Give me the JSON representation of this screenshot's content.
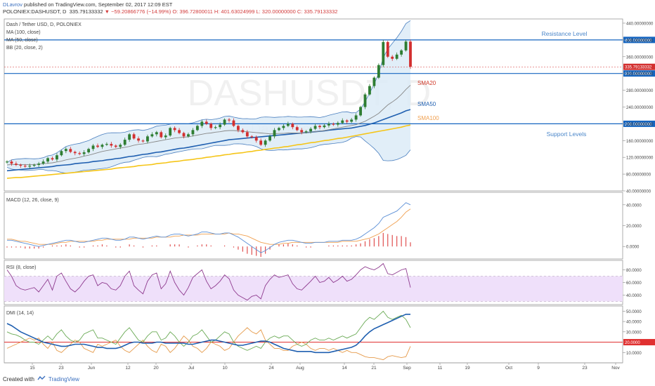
{
  "header": {
    "author": "DLavrov",
    "published": "published on TradingView.com, September 02, 2017 12:09 EST",
    "symbol": "POLONIEX:DASHUSDT, D",
    "last": "335.79133332",
    "change": "▼ −59.20866776 (−14.99%)",
    "ohlc": "O: 396.72800011 H: 401.63024999 L: 320.00000000 C: 335.79133332"
  },
  "footer": {
    "created_with": "Created with",
    "brand": "TradingView"
  },
  "colors": {
    "up": "#2e7d32",
    "down": "#d32f2f",
    "sma20": "#888888",
    "sma50": "#1f5fb0",
    "sma100": "#f5c518",
    "bb": "#4a7fbf",
    "bb_fill": "#dcebf7",
    "level": "#1565c0",
    "macd": "#5b8fd6",
    "signal": "#f0a050",
    "hist": "#e05050",
    "rsi": "#8e3a8e",
    "rsi_band": "#efe0fa",
    "dmi_adx": "#1f5fb0",
    "dmi_plus": "#6aaa55",
    "dmi_minus": "#e59a4a",
    "dmi_line": "#e03030"
  },
  "chart_data": [
    {
      "type": "candlestick",
      "title": "Dash / Tether USD, D, POLONIEX",
      "indicators": [
        "MA (100, close)",
        "MA (50, close)",
        "BB (20, close, 2)"
      ],
      "watermark": "DASHUSDT, D",
      "watermark_sub": "Dash / Tether USD",
      "ylim": [
        40,
        450
      ],
      "y_ticks": [
        "40.00000000",
        "80.00000000",
        "120.00000000",
        "160.00000000",
        "200.00000000",
        "240.00000000",
        "280.00000000",
        "320.00000000",
        "360.00000000",
        "400.00000000",
        "440.00000000"
      ],
      "x_ticks": [
        "15",
        "23",
        "Jun",
        "12",
        "20",
        "Jul",
        "10",
        "24",
        "Aug",
        "14",
        "21",
        "Sep",
        "11",
        "19",
        "Oct",
        "9",
        "23",
        "Nov"
      ],
      "last_label": "335.79133332",
      "levels": [
        {
          "value": 400,
          "label": "400.00000000",
          "text": "Resistance Level"
        },
        {
          "value": 320,
          "label": "320.00000000",
          "text": ""
        },
        {
          "value": 200,
          "label": "200.00000000",
          "text": "Support Levels"
        }
      ],
      "annotations": [
        "SMA20",
        "SMA50",
        "SMA100"
      ],
      "candles_close": [
        110,
        105,
        102,
        100,
        98,
        100,
        102,
        105,
        110,
        118,
        115,
        125,
        135,
        140,
        133,
        130,
        128,
        132,
        140,
        148,
        145,
        150,
        152,
        148,
        145,
        150,
        162,
        175,
        165,
        160,
        158,
        170,
        175,
        180,
        168,
        172,
        190,
        185,
        178,
        170,
        175,
        185,
        195,
        205,
        200,
        190,
        192,
        198,
        210,
        208,
        195,
        185,
        180,
        170,
        168,
        160,
        150,
        160,
        170,
        185,
        190,
        195,
        200,
        192,
        185,
        180,
        182,
        188,
        195,
        192,
        196,
        200,
        198,
        202,
        208,
        205,
        210,
        220,
        240,
        270,
        290,
        310,
        340,
        395,
        360,
        355,
        365,
        375,
        396,
        336
      ],
      "series": [
        {
          "name": "SMA20",
          "values": [
            102,
            103,
            103,
            103,
            103,
            103,
            103,
            104,
            105,
            106,
            107,
            109,
            111,
            114,
            116,
            118,
            120,
            123,
            125,
            128,
            131,
            134,
            136,
            138,
            140,
            142,
            144,
            146,
            149,
            151,
            152,
            154,
            156,
            158,
            160,
            162,
            164,
            166,
            167,
            168,
            169,
            171,
            173,
            175,
            177,
            178,
            180,
            181,
            183,
            184,
            184,
            183,
            182,
            181,
            180,
            179,
            178,
            177,
            176,
            176,
            177,
            177,
            178,
            178,
            178,
            178,
            179,
            180,
            181,
            182,
            184,
            186,
            188,
            190,
            192,
            194,
            196,
            198,
            202,
            206,
            212,
            218,
            225,
            235,
            245,
            252,
            260,
            270,
            282,
            292
          ]
        },
        {
          "name": "SMA50",
          "values": [
            88,
            89,
            90,
            91,
            92,
            93,
            94,
            95,
            96,
            97,
            98,
            100,
            101,
            102,
            103,
            105,
            106,
            107,
            108,
            110,
            111,
            112,
            114,
            115,
            117,
            118,
            120,
            122,
            123,
            125,
            127,
            128,
            130,
            132,
            133,
            135,
            137,
            139,
            141,
            142,
            144,
            146,
            148,
            150,
            152,
            154,
            156,
            158,
            160,
            162,
            163,
            164,
            165,
            166,
            167,
            168,
            169,
            170,
            171,
            172,
            173,
            174,
            175,
            176,
            177,
            178,
            179,
            180,
            181,
            182,
            183,
            185,
            186,
            187,
            188,
            189,
            190,
            192,
            194,
            196,
            199,
            202,
            206,
            210,
            214,
            218,
            222,
            226,
            231,
            234
          ]
        },
        {
          "name": "SMA100",
          "values": [
            70,
            71,
            72,
            72,
            73,
            74,
            75,
            76,
            77,
            78,
            79,
            80,
            81,
            82,
            83,
            84,
            85,
            86,
            87,
            88,
            89,
            90,
            91,
            92,
            94,
            95,
            96,
            97,
            98,
            100,
            101,
            102,
            103,
            105,
            106,
            107,
            109,
            110,
            111,
            113,
            114,
            115,
            117,
            118,
            120,
            121,
            123,
            124,
            126,
            127,
            129,
            130,
            131,
            133,
            134,
            136,
            137,
            139,
            140,
            142,
            143,
            145,
            146,
            148,
            150,
            151,
            153,
            155,
            156,
            158,
            160,
            161,
            163,
            165,
            166,
            168,
            170,
            172,
            174,
            176,
            178,
            180,
            182,
            184,
            186,
            188,
            190,
            192,
            195,
            197
          ]
        }
      ]
    },
    {
      "type": "line",
      "title": "MACD (12, 26, close, 9)",
      "ylim": [
        -12,
        52
      ],
      "y_ticks": [
        "0.0000",
        "20.0000",
        "40.0000"
      ],
      "series": [
        {
          "name": "MACD",
          "values": [
            6,
            6,
            5,
            4,
            3,
            2,
            1,
            0,
            1,
            2,
            3,
            4,
            5,
            6,
            6,
            5,
            4,
            4,
            5,
            6,
            7,
            8,
            8,
            7,
            6,
            6,
            7,
            9,
            9,
            8,
            7,
            8,
            9,
            10,
            9,
            9,
            11,
            12,
            12,
            11,
            10,
            11,
            12,
            14,
            14,
            13,
            12,
            12,
            13,
            13,
            11,
            9,
            6,
            3,
            0,
            -3,
            -6,
            -4,
            -1,
            2,
            4,
            5,
            6,
            6,
            5,
            4,
            3,
            3,
            4,
            4,
            4,
            5,
            5,
            5,
            6,
            6,
            6,
            7,
            9,
            12,
            15,
            18,
            22,
            28,
            30,
            32,
            34,
            38,
            42,
            40
          ]
        },
        {
          "name": "Signal",
          "values": [
            7,
            7,
            6,
            5,
            5,
            4,
            3,
            2,
            2,
            2,
            2,
            3,
            4,
            4,
            5,
            5,
            5,
            5,
            5,
            5,
            6,
            6,
            7,
            7,
            7,
            7,
            7,
            7,
            8,
            8,
            8,
            8,
            8,
            9,
            9,
            9,
            9,
            10,
            10,
            11,
            11,
            11,
            11,
            12,
            12,
            12,
            12,
            12,
            12,
            13,
            12,
            12,
            11,
            10,
            8,
            6,
            4,
            3,
            2,
            2,
            2,
            3,
            3,
            4,
            4,
            4,
            4,
            4,
            4,
            4,
            4,
            4,
            4,
            4,
            5,
            5,
            5,
            5,
            6,
            7,
            8,
            10,
            12,
            15,
            18,
            21,
            24,
            28,
            33,
            36
          ]
        },
        {
          "name": "Histogram",
          "values": [
            -1,
            -1,
            -1,
            -1,
            -2,
            -2,
            -2,
            -2,
            -1,
            0,
            1,
            1,
            1,
            2,
            1,
            0,
            -1,
            -1,
            0,
            1,
            1,
            2,
            1,
            0,
            -1,
            -1,
            0,
            2,
            1,
            0,
            -1,
            0,
            1,
            1,
            0,
            0,
            2,
            2,
            2,
            0,
            -1,
            0,
            1,
            2,
            2,
            1,
            0,
            0,
            1,
            0,
            -1,
            -3,
            -5,
            -7,
            -8,
            -9,
            -10,
            -7,
            -3,
            0,
            2,
            2,
            3,
            2,
            1,
            0,
            -1,
            -1,
            0,
            0,
            0,
            1,
            1,
            1,
            1,
            1,
            1,
            2,
            3,
            5,
            7,
            8,
            10,
            13,
            12,
            11,
            10,
            10,
            9,
            4
          ]
        }
      ]
    },
    {
      "type": "line",
      "title": "RSI (8, close)",
      "ylim": [
        25,
        95
      ],
      "y_ticks": [
        "40.0000",
        "60.0000",
        "80.0000"
      ],
      "band": [
        30,
        70
      ],
      "series": [
        {
          "name": "RSI",
          "values": [
            80,
            70,
            55,
            50,
            48,
            50,
            52,
            45,
            55,
            65,
            48,
            70,
            75,
            62,
            50,
            45,
            52,
            62,
            70,
            72,
            55,
            60,
            58,
            50,
            48,
            55,
            70,
            78,
            55,
            48,
            42,
            62,
            72,
            75,
            50,
            58,
            78,
            60,
            48,
            40,
            52,
            68,
            74,
            80,
            62,
            50,
            55,
            62,
            72,
            66,
            48,
            40,
            36,
            32,
            38,
            40,
            34,
            55,
            65,
            72,
            68,
            70,
            72,
            58,
            50,
            48,
            55,
            62,
            70,
            60,
            62,
            68,
            60,
            64,
            70,
            62,
            65,
            72,
            80,
            85,
            82,
            80,
            84,
            90,
            74,
            72,
            76,
            80,
            82,
            52
          ]
        }
      ]
    },
    {
      "type": "line",
      "title": "DMI (14, 14)",
      "ylim": [
        0,
        55
      ],
      "y_ticks": [
        "10.0000",
        "20.0000",
        "30.0000",
        "40.0000",
        "50.0000"
      ],
      "reference": {
        "value": 20,
        "label": "20.0000"
      },
      "series": [
        {
          "name": "ADX",
          "values": [
            38,
            36,
            33,
            30,
            28,
            26,
            24,
            22,
            20,
            19,
            18,
            17,
            16,
            16,
            17,
            18,
            18,
            18,
            17,
            16,
            15,
            15,
            14,
            14,
            14,
            15,
            17,
            19,
            20,
            20,
            19,
            19,
            19,
            20,
            20,
            19,
            19,
            19,
            19,
            19,
            18,
            18,
            19,
            20,
            21,
            22,
            22,
            21,
            20,
            19,
            18,
            17,
            17,
            18,
            19,
            20,
            21,
            21,
            20,
            18,
            16,
            14,
            13,
            12,
            11,
            11,
            11,
            11,
            10,
            10,
            10,
            10,
            11,
            12,
            13,
            14,
            15,
            17,
            21,
            26,
            30,
            33,
            35,
            37,
            39,
            41,
            43,
            45,
            47,
            47
          ]
        },
        {
          "name": "+DI",
          "values": [
            30,
            28,
            27,
            25,
            22,
            20,
            20,
            18,
            22,
            26,
            22,
            28,
            32,
            26,
            22,
            20,
            22,
            28,
            30,
            32,
            24,
            24,
            22,
            20,
            18,
            24,
            30,
            34,
            28,
            22,
            20,
            26,
            30,
            30,
            22,
            24,
            30,
            26,
            20,
            16,
            20,
            26,
            28,
            32,
            26,
            20,
            22,
            26,
            30,
            28,
            20,
            16,
            14,
            12,
            14,
            16,
            14,
            20,
            24,
            26,
            24,
            26,
            26,
            22,
            18,
            16,
            18,
            22,
            24,
            22,
            22,
            24,
            22,
            24,
            26,
            24,
            26,
            28,
            34,
            40,
            44,
            42,
            46,
            50,
            44,
            42,
            44,
            46,
            42,
            34
          ]
        },
        {
          "name": "-DI",
          "values": [
            14,
            16,
            18,
            20,
            22,
            24,
            22,
            24,
            18,
            14,
            20,
            12,
            10,
            14,
            18,
            22,
            20,
            14,
            12,
            10,
            18,
            16,
            18,
            20,
            22,
            16,
            12,
            10,
            14,
            18,
            22,
            16,
            12,
            10,
            18,
            16,
            10,
            14,
            20,
            26,
            22,
            16,
            14,
            10,
            14,
            20,
            18,
            16,
            12,
            14,
            20,
            26,
            30,
            34,
            30,
            28,
            32,
            22,
            18,
            14,
            14,
            12,
            12,
            16,
            18,
            20,
            18,
            14,
            12,
            14,
            14,
            12,
            14,
            12,
            10,
            12,
            10,
            10,
            8,
            6,
            5,
            5,
            4,
            3,
            6,
            7,
            6,
            5,
            6,
            16
          ]
        }
      ]
    }
  ]
}
